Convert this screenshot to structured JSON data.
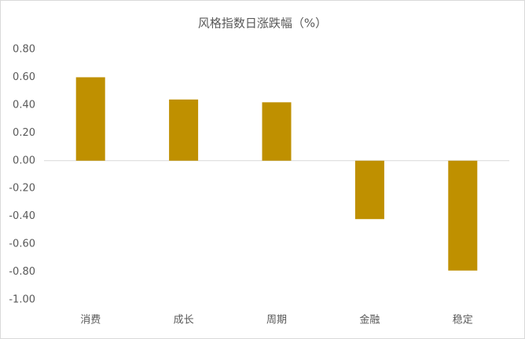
{
  "chart_data": {
    "type": "bar",
    "title": "风格指数日涨跌幅（%）",
    "categories": [
      "消费",
      "成长",
      "周期",
      "金融",
      "稳定"
    ],
    "values": [
      0.6,
      0.44,
      0.42,
      -0.42,
      -0.79
    ],
    "color": "#bf9000",
    "ylim": [
      -1.0,
      0.8
    ],
    "yticks": [
      {
        "value": 0.8,
        "label": "0.80"
      },
      {
        "value": 0.6,
        "label": "0.60"
      },
      {
        "value": 0.4,
        "label": "0.40"
      },
      {
        "value": 0.2,
        "label": "0.20"
      },
      {
        "value": 0,
        "label": "0.00"
      },
      {
        "value": -0.2,
        "label": "-0.20"
      },
      {
        "value": -0.4,
        "label": "-0.40"
      },
      {
        "value": -0.6,
        "label": "-0.60"
      },
      {
        "value": -0.8,
        "label": "-0.80"
      },
      {
        "value": -1.0,
        "label": "-1.00"
      }
    ]
  }
}
